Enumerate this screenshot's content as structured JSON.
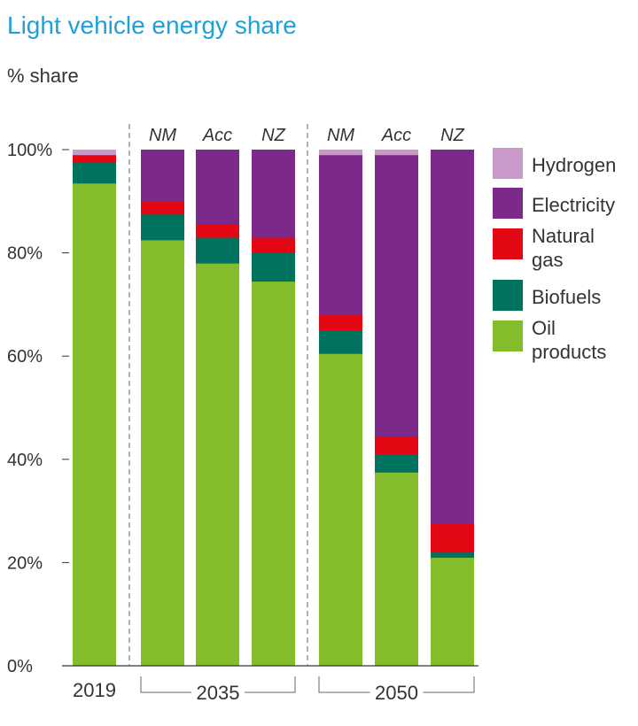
{
  "chart_data": {
    "type": "bar",
    "stacked": true,
    "title": "Light vehicle energy share",
    "ylabel": "% share",
    "ylim": [
      0,
      100
    ],
    "yticks": [
      "0%",
      "20%",
      "40%",
      "60%",
      "80%",
      "100%"
    ],
    "categories": [
      "2019",
      "NM",
      "Acc",
      "NZ",
      "NM",
      "Acc",
      "NZ"
    ],
    "groups": [
      {
        "label": "2019",
        "members": [
          0
        ]
      },
      {
        "label": "2035",
        "members": [
          1,
          2,
          3
        ]
      },
      {
        "label": "2050",
        "members": [
          4,
          5,
          6
        ]
      }
    ],
    "series": [
      {
        "name": "Oil products",
        "color": "#84bd2b",
        "values": [
          93.5,
          82.5,
          78,
          74.5,
          60.5,
          37.5,
          21
        ]
      },
      {
        "name": "Biofuels",
        "color": "#00735f",
        "values": [
          4,
          5,
          5,
          5.5,
          4.5,
          3.5,
          1
        ]
      },
      {
        "name": "Natural gas",
        "color": "#e30613",
        "values": [
          1.5,
          2.5,
          2.5,
          3,
          3,
          3.5,
          5.5
        ]
      },
      {
        "name": "Electricity",
        "color": "#7b2a8b",
        "values": [
          0,
          10,
          14.5,
          17,
          31,
          54.5,
          72.5
        ]
      },
      {
        "name": "Hydrogen",
        "color": "#c99ac9",
        "values": [
          1,
          0,
          0,
          0,
          1,
          1,
          0
        ]
      }
    ],
    "legend": {
      "position": "right",
      "order": [
        "Hydrogen",
        "Electricity",
        "Natural gas",
        "Biofuels",
        "Oil products"
      ],
      "lines": {
        "Hydrogen": [
          "Hydrogen"
        ],
        "Electricity": [
          "Electricity"
        ],
        "Natural gas": [
          "Natural",
          "gas"
        ],
        "Biofuels": [
          "Biofuels"
        ],
        "Oil products": [
          "Oil",
          "products"
        ]
      }
    }
  }
}
